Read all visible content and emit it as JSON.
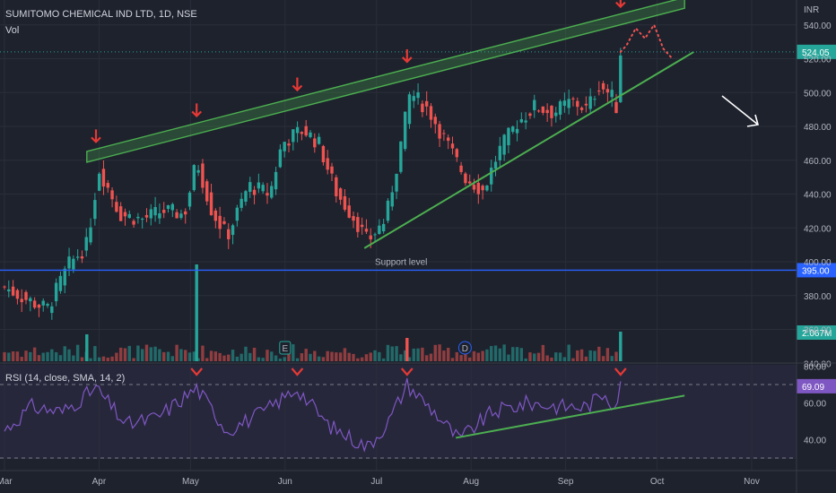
{
  "header": {
    "symbol_line": "SUMITOMO CHEMICAL IND LTD, 1D, NSE",
    "vol_label": "Vol",
    "rsi_label": "RSI (14, close, SMA, 14, 2)"
  },
  "colors": {
    "background": "#1e222d",
    "up": "#26a69a",
    "down": "#ef5350",
    "channel": "#4caf50",
    "support": "#2962ff",
    "rsi_line": "#7e57c2",
    "arrow": "#e53935"
  },
  "chart_data": [
    {
      "type": "candlestick",
      "currency_label": "INR",
      "y_ticks": [
        340,
        360,
        380,
        400,
        420,
        440,
        460,
        480,
        500,
        520,
        540
      ],
      "ylim": [
        340,
        550
      ],
      "x_months": [
        "Mar",
        "Apr",
        "May",
        "Jun",
        "Jul",
        "Aug",
        "Sep",
        "Oct",
        "Nov"
      ],
      "last_price": "524.05",
      "support_level": {
        "value": 395,
        "label": "Support level",
        "badge": "395.00"
      },
      "channel": {
        "upper": [
          {
            "date": "2024-03-28",
            "price": 462
          },
          {
            "date": "2024-10-10",
            "price": 553
          }
        ],
        "lower": [
          {
            "date": "2024-06-27",
            "price": 408
          },
          {
            "date": "2024-10-13",
            "price": 524
          }
        ]
      },
      "volume_badge": "2.067M",
      "event_markers": [
        "E",
        "D"
      ],
      "price_path": [
        {
          "date": "2024-03-01",
          "close": 385
        },
        {
          "date": "2024-03-08",
          "close": 378
        },
        {
          "date": "2024-03-15",
          "close": 372
        },
        {
          "date": "2024-03-22",
          "close": 398
        },
        {
          "date": "2024-03-28",
          "close": 410
        },
        {
          "date": "2024-04-01",
          "close": 455
        },
        {
          "date": "2024-04-08",
          "close": 428
        },
        {
          "date": "2024-04-15",
          "close": 425
        },
        {
          "date": "2024-04-22",
          "close": 430
        },
        {
          "date": "2024-04-29",
          "close": 428
        },
        {
          "date": "2024-05-03",
          "close": 460
        },
        {
          "date": "2024-05-08",
          "close": 430
        },
        {
          "date": "2024-05-13",
          "close": 415
        },
        {
          "date": "2024-05-20",
          "close": 445
        },
        {
          "date": "2024-05-27",
          "close": 440
        },
        {
          "date": "2024-05-31",
          "close": 470
        },
        {
          "date": "2024-06-04",
          "close": 475
        },
        {
          "date": "2024-06-07",
          "close": 478
        },
        {
          "date": "2024-06-12",
          "close": 470
        },
        {
          "date": "2024-06-18",
          "close": 440
        },
        {
          "date": "2024-06-24",
          "close": 425
        },
        {
          "date": "2024-06-28",
          "close": 412
        },
        {
          "date": "2024-07-04",
          "close": 425
        },
        {
          "date": "2024-07-08",
          "close": 460
        },
        {
          "date": "2024-07-12",
          "close": 500
        },
        {
          "date": "2024-07-18",
          "close": 490
        },
        {
          "date": "2024-07-24",
          "close": 470
        },
        {
          "date": "2024-07-30",
          "close": 450
        },
        {
          "date": "2024-08-05",
          "close": 442
        },
        {
          "date": "2024-08-10",
          "close": 465
        },
        {
          "date": "2024-08-16",
          "close": 482
        },
        {
          "date": "2024-08-22",
          "close": 492
        },
        {
          "date": "2024-08-28",
          "close": 488
        },
        {
          "date": "2024-09-03",
          "close": 495
        },
        {
          "date": "2024-09-08",
          "close": 490
        },
        {
          "date": "2024-09-12",
          "close": 505
        },
        {
          "date": "2024-09-16",
          "close": 498
        },
        {
          "date": "2024-09-18",
          "close": 490
        },
        {
          "date": "2024-09-19",
          "close": 524
        }
      ],
      "projection": [
        {
          "date": "2024-09-21",
          "price": 528
        },
        {
          "date": "2024-09-24",
          "price": 538
        },
        {
          "date": "2024-09-27",
          "price": 532
        },
        {
          "date": "2024-09-30",
          "price": 540
        },
        {
          "date": "2024-10-03",
          "price": 526
        },
        {
          "date": "2024-10-06",
          "price": 520
        }
      ],
      "resistance_touches": [
        "2024-03-31",
        "2024-05-03",
        "2024-06-05",
        "2024-07-11",
        "2024-09-19"
      ]
    },
    {
      "type": "line",
      "name": "RSI",
      "value_label": "69.09",
      "y_ticks": [
        40,
        60,
        80
      ],
      "ylim": [
        32,
        80
      ],
      "band": [
        30,
        70
      ],
      "values": [
        {
          "date": "2024-03-01",
          "rsi": 45
        },
        {
          "date": "2024-03-10",
          "rsi": 58
        },
        {
          "date": "2024-03-20",
          "rsi": 55
        },
        {
          "date": "2024-03-31",
          "rsi": 68
        },
        {
          "date": "2024-04-10",
          "rsi": 48
        },
        {
          "date": "2024-04-20",
          "rsi": 52
        },
        {
          "date": "2024-05-03",
          "rsi": 68
        },
        {
          "date": "2024-05-13",
          "rsi": 45
        },
        {
          "date": "2024-05-25",
          "rsi": 55
        },
        {
          "date": "2024-06-05",
          "rsi": 68
        },
        {
          "date": "2024-06-15",
          "rsi": 48
        },
        {
          "date": "2024-06-28",
          "rsi": 36
        },
        {
          "date": "2024-07-05",
          "rsi": 50
        },
        {
          "date": "2024-07-11",
          "rsi": 70
        },
        {
          "date": "2024-07-20",
          "rsi": 55
        },
        {
          "date": "2024-07-28",
          "rsi": 40
        },
        {
          "date": "2024-08-08",
          "rsi": 55
        },
        {
          "date": "2024-08-20",
          "rsi": 60
        },
        {
          "date": "2024-08-30",
          "rsi": 58
        },
        {
          "date": "2024-09-08",
          "rsi": 58
        },
        {
          "date": "2024-09-14",
          "rsi": 66
        },
        {
          "date": "2024-09-17",
          "rsi": 58
        },
        {
          "date": "2024-09-19",
          "rsi": 69
        }
      ],
      "trendline": [
        {
          "date": "2024-07-27",
          "rsi": 41
        },
        {
          "date": "2024-10-10",
          "rsi": 64
        }
      ]
    }
  ]
}
